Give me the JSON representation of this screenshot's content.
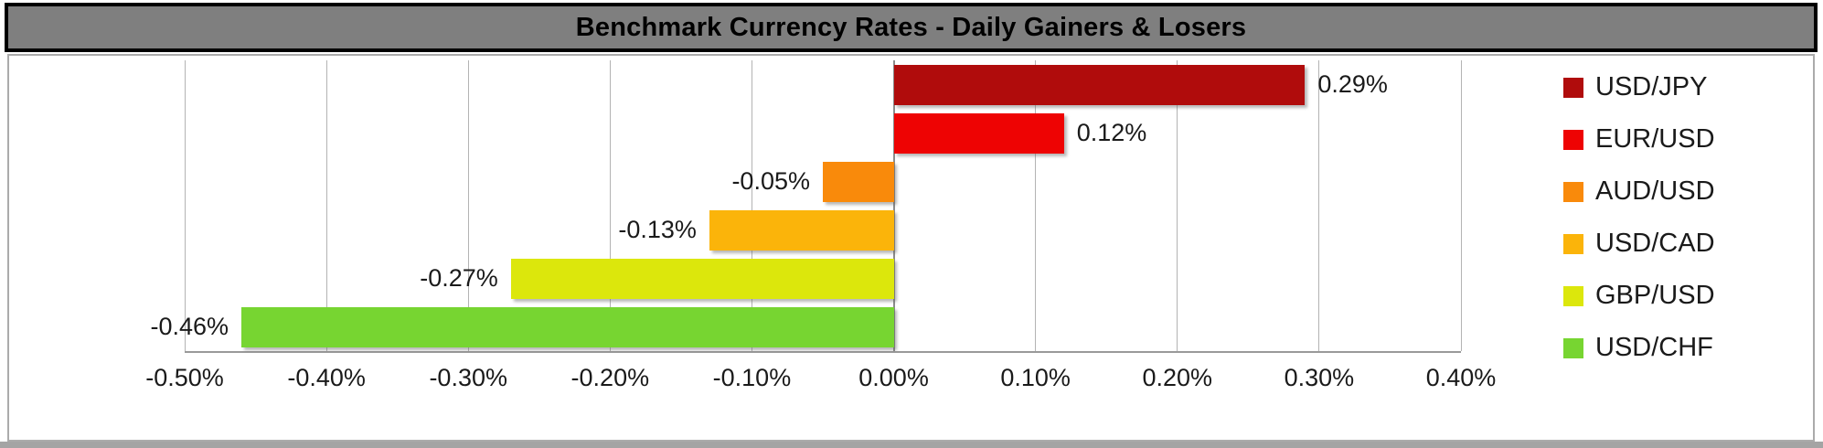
{
  "title": "Benchmark Currency Rates - Daily Gainers & Losers",
  "colors": {
    "title_bg": "#7F7F7F",
    "title_text": "#000000",
    "frame_border": "#ABABAB",
    "gridline": "#B3B3B3",
    "zero_line": "#8C8C8C",
    "axis_line": "#9A9A9A",
    "bottom_strip": "#A4A4A4",
    "label_text": "#1A1A1A"
  },
  "chart_data": {
    "type": "bar",
    "orientation": "horizontal",
    "title": "Benchmark Currency Rates - Daily Gainers & Losers",
    "xlim": [
      -0.5,
      0.4
    ],
    "grid": "vertical",
    "legend_position": "right",
    "categories": [
      "USD/JPY",
      "EUR/USD",
      "AUD/USD",
      "USD/CAD",
      "GBP/USD",
      "USD/CHF"
    ],
    "values": [
      0.29,
      0.12,
      -0.05,
      -0.13,
      -0.27,
      -0.46
    ],
    "bars": [
      {
        "category": "USD/JPY",
        "value": 0.29,
        "label": "0.29%",
        "color": "#B00C0C"
      },
      {
        "category": "EUR/USD",
        "value": 0.12,
        "label": "0.12%",
        "color": "#EE0303"
      },
      {
        "category": "AUD/USD",
        "value": -0.05,
        "label": "-0.05%",
        "color": "#F98A0B"
      },
      {
        "category": "USD/CAD",
        "value": -0.13,
        "label": "-0.13%",
        "color": "#FBB40A"
      },
      {
        "category": "GBP/USD",
        "value": -0.27,
        "label": "-0.27%",
        "color": "#DCE70C"
      },
      {
        "category": "USD/CHF",
        "value": -0.46,
        "label": "-0.46%",
        "color": "#77D531"
      }
    ],
    "x_ticks": [
      {
        "label": "-0.50%",
        "value": -0.5
      },
      {
        "label": "-0.40%",
        "value": -0.4
      },
      {
        "label": "-0.30%",
        "value": -0.3
      },
      {
        "label": "-0.20%",
        "value": -0.2
      },
      {
        "label": "-0.10%",
        "value": -0.1
      },
      {
        "label": "0.00%",
        "value": 0
      },
      {
        "label": "0.10%",
        "value": 0.1
      },
      {
        "label": "0.20%",
        "value": 0.2
      },
      {
        "label": "0.30%",
        "value": 0.3
      },
      {
        "label": "0.40%",
        "value": 0.4
      }
    ]
  }
}
